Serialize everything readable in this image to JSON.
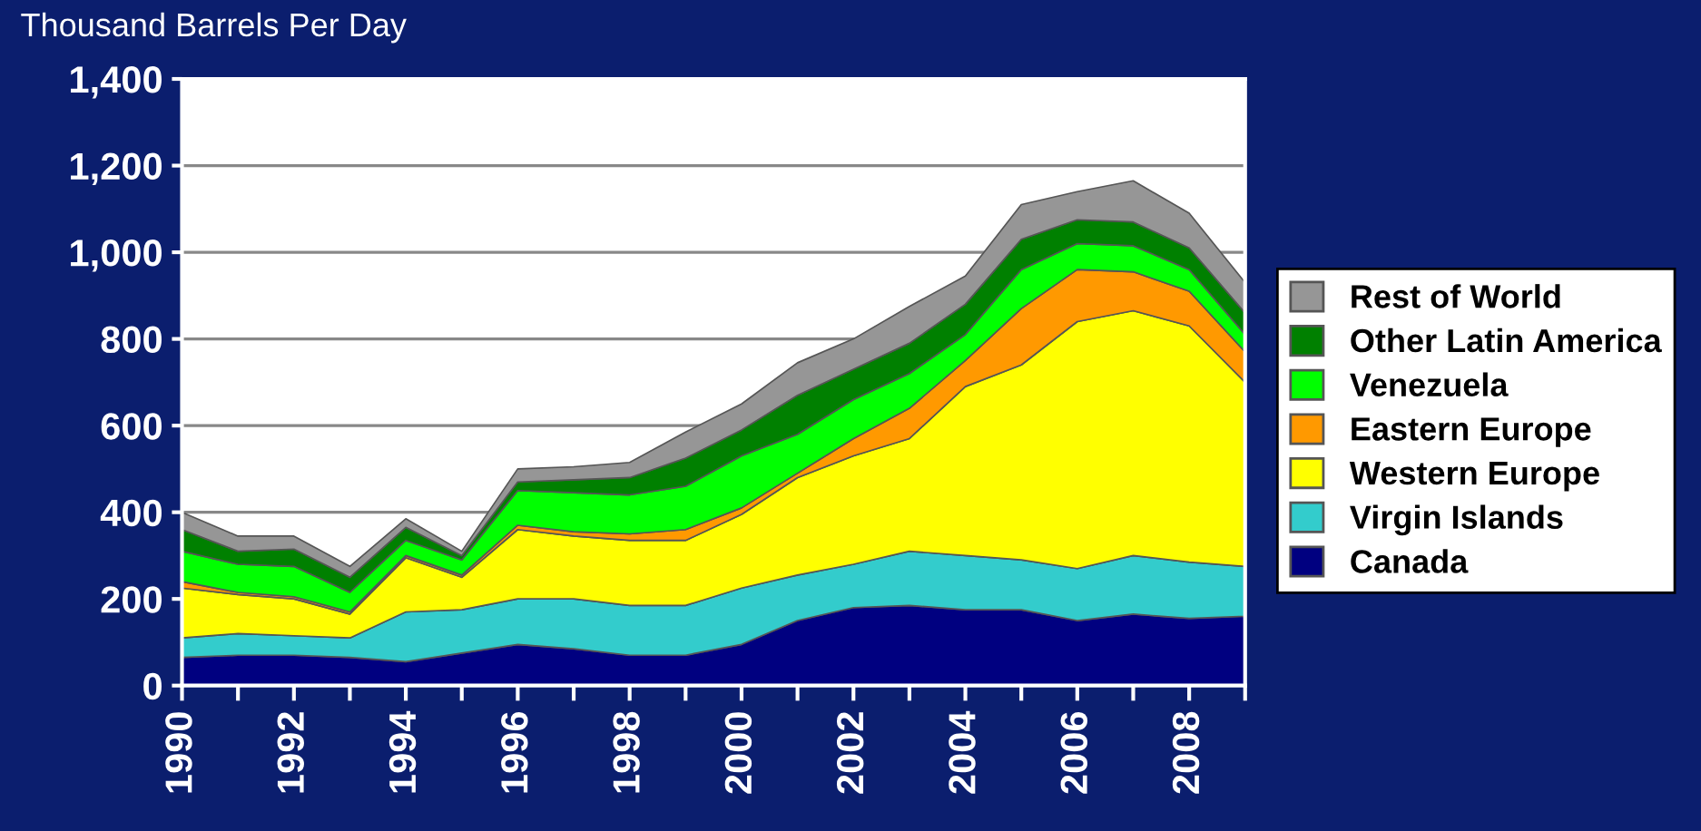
{
  "chart_data": {
    "type": "area",
    "stacked": true,
    "ylabel": "Thousand Barrels Per Day",
    "x": [
      1990,
      1991,
      1992,
      1993,
      1994,
      1995,
      1996,
      1997,
      1998,
      1999,
      2000,
      2001,
      2002,
      2003,
      2004,
      2005,
      2006,
      2007,
      2008,
      2009
    ],
    "series": [
      {
        "name": "Canada",
        "color": "#000080",
        "values": [
          65,
          70,
          70,
          65,
          55,
          75,
          95,
          85,
          70,
          70,
          95,
          150,
          180,
          185,
          175,
          175,
          150,
          165,
          155,
          160
        ]
      },
      {
        "name": "Virgin Islands",
        "color": "#33cccc",
        "values": [
          45,
          50,
          45,
          45,
          115,
          100,
          105,
          115,
          115,
          115,
          130,
          105,
          100,
          125,
          125,
          115,
          120,
          135,
          130,
          115
        ]
      },
      {
        "name": "Western Europe",
        "color": "#ffff00",
        "values": [
          115,
          90,
          85,
          55,
          125,
          75,
          160,
          145,
          150,
          150,
          170,
          225,
          250,
          260,
          390,
          450,
          570,
          565,
          545,
          425
        ]
      },
      {
        "name": "Eastern Europe",
        "color": "#ff9900",
        "values": [
          15,
          5,
          5,
          5,
          5,
          5,
          10,
          10,
          15,
          25,
          15,
          10,
          40,
          70,
          60,
          130,
          120,
          90,
          80,
          70
        ]
      },
      {
        "name": "Venezuela",
        "color": "#00ff00",
        "values": [
          70,
          65,
          70,
          45,
          35,
          35,
          80,
          90,
          90,
          100,
          120,
          90,
          90,
          80,
          60,
          90,
          60,
          60,
          50,
          40
        ]
      },
      {
        "name": "Other Latin America",
        "color": "#008000",
        "values": [
          50,
          30,
          40,
          35,
          30,
          10,
          20,
          30,
          40,
          65,
          60,
          90,
          70,
          70,
          70,
          70,
          55,
          55,
          50,
          50
        ]
      },
      {
        "name": "Rest of World",
        "color": "#969696",
        "values": [
          40,
          35,
          30,
          25,
          20,
          10,
          30,
          30,
          35,
          60,
          60,
          75,
          70,
          85,
          65,
          80,
          65,
          95,
          80,
          70
        ]
      }
    ],
    "xlim": [
      1990,
      2009
    ],
    "xticks": [
      1990,
      {
        "value": 1991,
        "label": null
      },
      1992,
      {
        "value": 1993,
        "label": null
      },
      1994,
      {
        "value": 1995,
        "label": null
      },
      1996,
      {
        "value": 1997,
        "label": null
      },
      1998,
      {
        "value": 1999,
        "label": null
      },
      2000,
      {
        "value": 2001,
        "label": null
      },
      2002,
      {
        "value": 2003,
        "label": null
      },
      2004,
      {
        "value": 2005,
        "label": null
      },
      2006,
      {
        "value": 2007,
        "label": null
      },
      2008,
      {
        "value": 2009,
        "label": null
      }
    ],
    "ylim": [
      0,
      1400
    ],
    "yticks": [
      0,
      200,
      400,
      {
        "value": 600,
        "label": "600"
      },
      {
        "value": 800,
        "label": "800"
      },
      {
        "value": 1000,
        "label": "1,000"
      },
      {
        "value": 1200,
        "label": "1,200"
      },
      {
        "value": 1400,
        "label": "1,400"
      }
    ],
    "grid": "y",
    "legend": "right"
  }
}
